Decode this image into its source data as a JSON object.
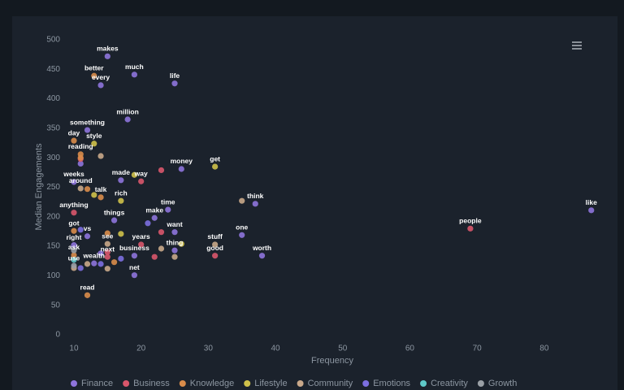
{
  "chart_data": {
    "type": "scatter",
    "x_label": "Frequency",
    "y_label": "Median Engagements",
    "xlim": [
      9,
      88
    ],
    "ylim": [
      0,
      500
    ],
    "xticks": [
      10,
      20,
      30,
      40,
      50,
      60,
      70,
      80
    ],
    "yticks": [
      0,
      50,
      100,
      150,
      200,
      250,
      300,
      350,
      400,
      450,
      500
    ],
    "grid": false,
    "legend": "bottom",
    "series": [
      {
        "name": "Finance",
        "color": "#8e74dc",
        "x": [
          15,
          14,
          19,
          25,
          18,
          12,
          10,
          17,
          26,
          24,
          37,
          22,
          16,
          25,
          35,
          87,
          12,
          10,
          25,
          38,
          19,
          13,
          19,
          11,
          14
        ],
        "values": [
          472,
          423,
          441,
          426,
          365,
          347,
          259,
          262,
          281,
          212,
          222,
          198,
          194,
          174,
          169,
          211,
          167,
          152,
          143,
          134,
          134,
          121,
          101,
          290,
          138
        ],
        "labels": [
          "makes",
          "every",
          "much",
          "life",
          "million",
          "something",
          "weeks",
          "made",
          "money",
          "time",
          "think",
          "make",
          "things",
          "want",
          "one",
          "like",
          "vs",
          "right",
          "thing",
          "worth",
          "business",
          "wealth",
          "net",
          null,
          null
        ]
      },
      {
        "name": "Business",
        "color": "#d9566b",
        "x": [
          20,
          10,
          69,
          31,
          20,
          15,
          23,
          23,
          22,
          11,
          15
        ],
        "values": [
          260,
          207,
          180,
          134,
          153,
          132,
          279,
          174,
          132,
          298,
          140
        ],
        "labels": [
          "way",
          "anything",
          "people",
          "good",
          "years",
          "next",
          null,
          null,
          null,
          null,
          null
        ]
      },
      {
        "name": "Knowledge",
        "color": "#d98c4a",
        "x": [
          13,
          10,
          11,
          14,
          10,
          10,
          12,
          12,
          15,
          16,
          11
        ],
        "values": [
          439,
          329,
          306,
          233,
          176,
          135,
          67,
          247,
          172,
          123,
          300
        ],
        "labels": [
          "better",
          "day",
          "reading",
          "talk",
          "got",
          "ask",
          "read",
          null,
          null,
          null,
          null
        ]
      },
      {
        "name": "Lifestyle",
        "color": "#cfc14a",
        "x": [
          13,
          17,
          31,
          19,
          17,
          26,
          13
        ],
        "values": [
          324,
          227,
          285,
          271,
          171,
          154,
          237
        ],
        "labels": [
          "style",
          "rich",
          "get",
          null,
          null,
          null,
          null
        ]
      },
      {
        "name": "Community",
        "color": "#c9a88a",
        "x": [
          11,
          15,
          31,
          14,
          35,
          25,
          15,
          10,
          23,
          12
        ],
        "values": [
          248,
          154,
          153,
          303,
          227,
          132,
          112,
          113,
          146,
          120
        ],
        "labels": [
          "around",
          "see",
          "stuff",
          null,
          null,
          null,
          null,
          null,
          null,
          null
        ]
      },
      {
        "name": "Emotions",
        "color": "#7c6fe0",
        "x": [
          11,
          21,
          14,
          11,
          17
        ],
        "values": [
          178,
          189,
          120,
          113,
          129
        ],
        "labels": [
          null,
          null,
          null,
          null,
          null
        ]
      },
      {
        "name": "Creativity",
        "color": "#5ec8c8",
        "x": [
          10
        ],
        "values": [
          127
        ],
        "labels": [
          null
        ]
      },
      {
        "name": "Growth",
        "color": "#9aa0a6",
        "x": [
          10,
          10
        ],
        "values": [
          117,
          143
        ],
        "labels": [
          "use",
          null
        ]
      }
    ]
  }
}
